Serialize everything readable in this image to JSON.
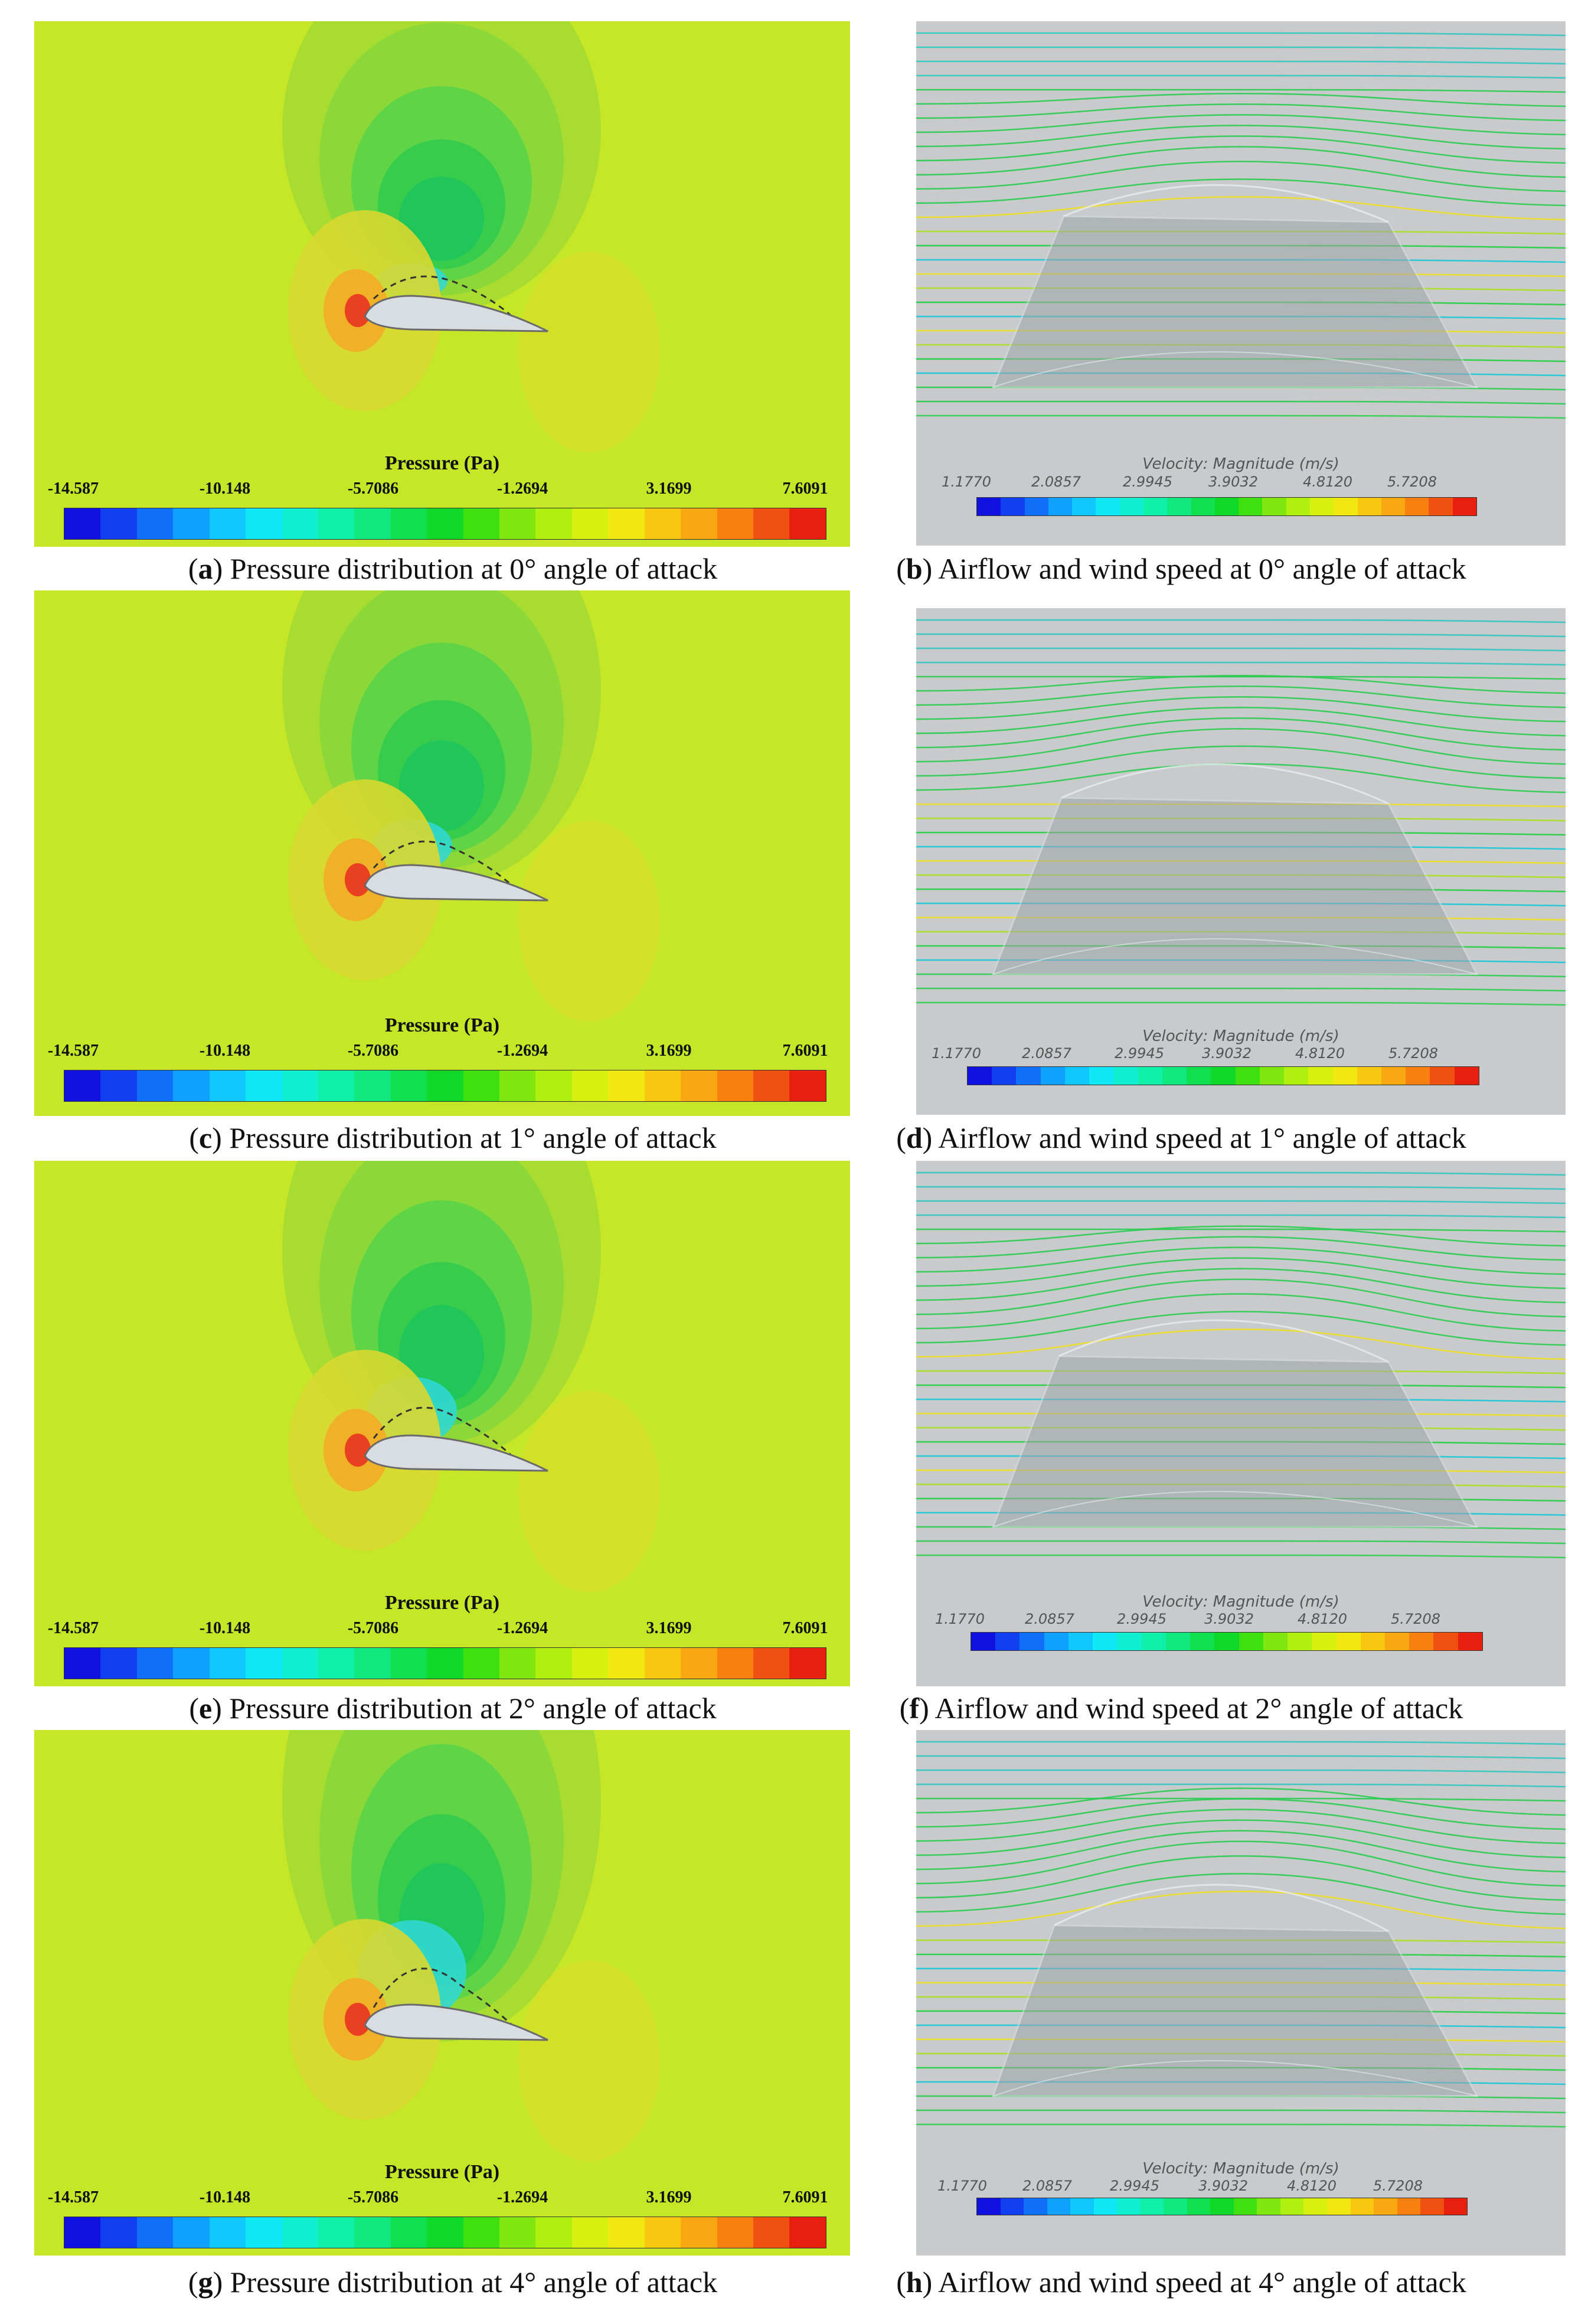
{
  "figure": {
    "panels": [
      {
        "id": "a",
        "kind": "pressure",
        "label": "a",
        "caption": "Pressure distribution at 0° angle of attack",
        "angle_deg": 0
      },
      {
        "id": "b",
        "kind": "velocity",
        "label": "b",
        "caption": "Airflow and wind speed at 0° angle of attack",
        "angle_deg": 0
      },
      {
        "id": "c",
        "kind": "pressure",
        "label": "c",
        "caption": "Pressure distribution at 1° angle of attack",
        "angle_deg": 1
      },
      {
        "id": "d",
        "kind": "velocity",
        "label": "d",
        "caption": "Airflow and wind speed at 1° angle of attack",
        "angle_deg": 1
      },
      {
        "id": "e",
        "kind": "pressure",
        "label": "e",
        "caption": "Pressure distribution at 2° angle of attack",
        "angle_deg": 2
      },
      {
        "id": "f",
        "kind": "velocity",
        "label": "f",
        "caption": "Airflow and wind speed at 2° angle of attack",
        "angle_deg": 2
      },
      {
        "id": "g",
        "kind": "pressure",
        "label": "g",
        "caption": "Pressure distribution at 4° angle of attack",
        "angle_deg": 4
      },
      {
        "id": "h",
        "kind": "velocity",
        "label": "h",
        "caption": "Airflow and wind speed at 4° angle of attack",
        "angle_deg": 4
      }
    ]
  },
  "pressure_legend": {
    "title": "Pressure (Pa)",
    "ticks": [
      "-14.587",
      "-10.148",
      "-5.7086",
      "-1.2694",
      "3.1699",
      "7.6091"
    ]
  },
  "velocity_legend": {
    "title": "Velocity: Magnitude (m/s)",
    "ticks": [
      "1.1770",
      "2.0857",
      "2.9945",
      "3.9032",
      "4.8120",
      "5.7208"
    ]
  },
  "colors": {
    "colormap": [
      "#1010e0",
      "#1040f0",
      "#1070f8",
      "#10a0ff",
      "#10c8ff",
      "#10e8f8",
      "#10f0d0",
      "#10f0a8",
      "#10e880",
      "#10e050",
      "#10d828",
      "#40e010",
      "#80e810",
      "#b0f010",
      "#d8f010",
      "#f0e810",
      "#f8c810",
      "#f8a810",
      "#f88010",
      "#f05010",
      "#e82010"
    ],
    "pressure_background": "#c6e628",
    "velocity_background": "#c8cacb"
  }
}
